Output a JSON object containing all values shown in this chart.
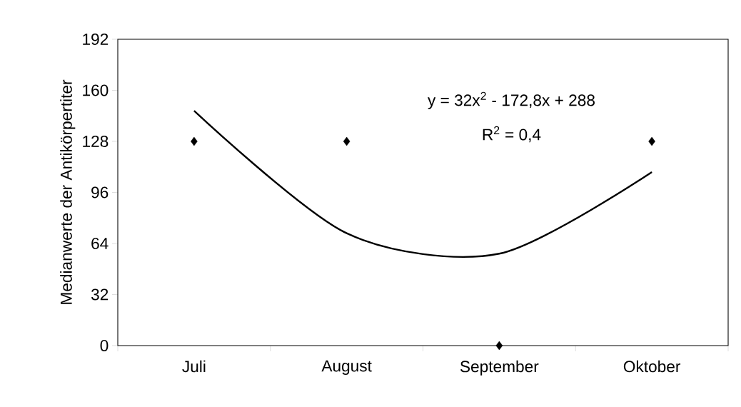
{
  "chart_data": {
    "type": "scatter",
    "ylabel": "Medianwerte der Antikörpertiter",
    "annotations": [
      "y = 32x$^{2}$ - 172,8x + 288",
      "R$^{2}$ = 0,4"
    ],
    "categories": [
      "Juli",
      "August",
      "September",
      "Oktober"
    ],
    "series": [
      {
        "type": "scatter",
        "values": [
          128,
          128,
          0,
          128
        ],
        "color": "#000000",
        "marker": "diamond"
      },
      {
        "type": "line",
        "values": [
          147.2,
          70.4,
          57.6,
          108.8
        ],
        "color": "#000000",
        "line_style": "solid"
      }
    ],
    "ylim": [
      0,
      192
    ],
    "yticks": [
      0,
      32,
      64,
      96,
      128,
      160,
      192
    ],
    "grid": false
  }
}
